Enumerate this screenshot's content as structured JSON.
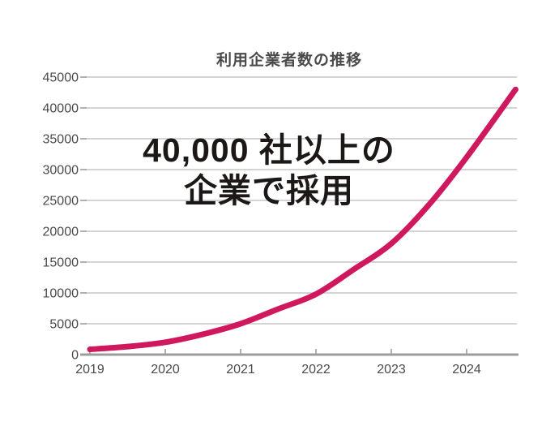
{
  "chart_data": {
    "type": "line",
    "title": "利用企業者数の推移",
    "xlabel": "",
    "ylabel": "",
    "x": [
      2019,
      2019.5,
      2020,
      2020.5,
      2021,
      2021.5,
      2022,
      2022.5,
      2023,
      2023.5,
      2024,
      2024.65
    ],
    "series": [
      {
        "name": "利用企業者数",
        "values": [
          850,
          1300,
          2000,
          3300,
          5000,
          7400,
          9800,
          13800,
          18000,
          24300,
          32000,
          43000
        ]
      }
    ],
    "y_ticks": [
      0,
      5000,
      10000,
      15000,
      20000,
      25000,
      30000,
      35000,
      40000,
      45000
    ],
    "x_tick_years": [
      2019,
      2020,
      2021,
      2022,
      2023,
      2024
    ],
    "x_tick_labels": [
      "2019",
      "2020",
      "2021",
      "2022",
      "2023",
      "2024"
    ],
    "ylim": [
      0,
      45000
    ],
    "xlim": [
      2019,
      2024.7
    ],
    "grid": "horizontal-only",
    "legend": "none",
    "annotation": {
      "line1": "40,000 社以上の",
      "line2": "企業で採用"
    }
  },
  "colors": {
    "background": "#ffffff",
    "line": "#cf185d",
    "grid": "#c6c6c6",
    "axis": "#9c9c9c",
    "tick": "#9c9c9c",
    "tick_label": "#4a4a4a",
    "title": "#4a4a4a",
    "annotation": "#1c1818"
  }
}
